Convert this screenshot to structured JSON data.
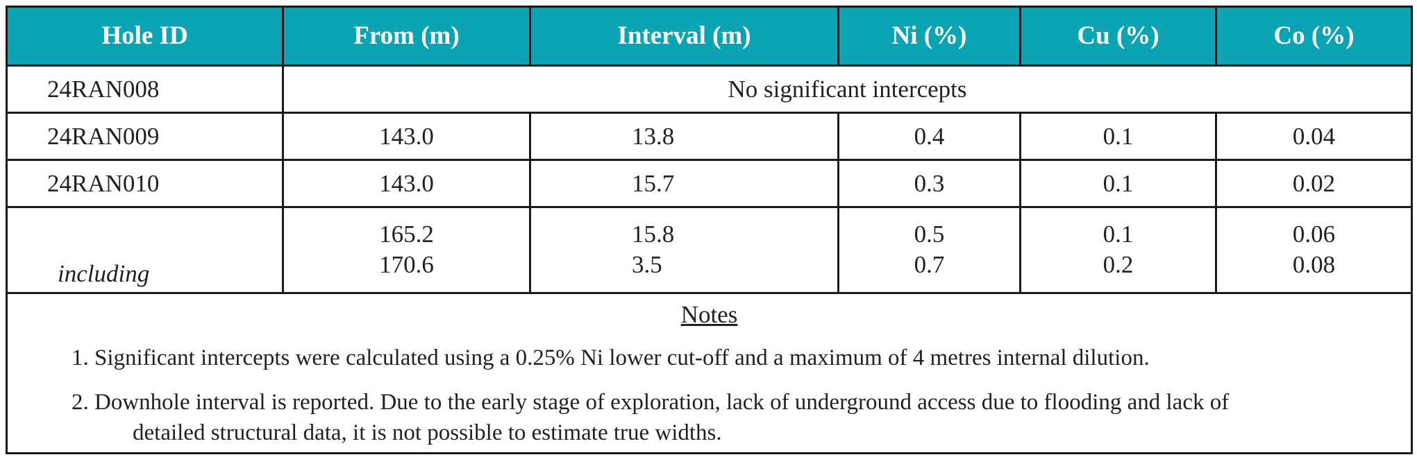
{
  "table": {
    "headers": [
      "Hole ID",
      "From (m)",
      "Interval (m)",
      "Ni (%)",
      "Cu (%)",
      "Co (%)"
    ],
    "rows": [
      {
        "hole": "24RAN008",
        "merged": "No significant intercepts"
      },
      {
        "hole": "24RAN009",
        "from": "143.0",
        "interval": "13.8",
        "ni": "0.4",
        "cu": "0.1",
        "co": "0.04"
      },
      {
        "hole": "24RAN010",
        "from": "143.0",
        "interval": "15.7",
        "ni": "0.3",
        "cu": "0.1",
        "co": "0.02"
      }
    ],
    "including": {
      "label": "including",
      "lines": [
        {
          "from": "165.2",
          "interval": "15.8",
          "ni": "0.5",
          "cu": "0.1",
          "co": "0.06"
        },
        {
          "from": "170.6",
          "interval": "3.5",
          "ni": "0.7",
          "cu": "0.2",
          "co": "0.08"
        }
      ]
    }
  },
  "notes": {
    "title": "Notes",
    "items": [
      {
        "text": "1. Significant intercepts were calculated using a 0.25% Ni lower cut-off and a maximum of 4 metres internal dilution."
      },
      {
        "text": "2. Downhole interval is reported. Due to the early stage of exploration, lack of underground access due to flooding and lack of",
        "cont": "detailed structural data, it is not possible to estimate true widths."
      }
    ]
  },
  "colors": {
    "header_bg": "#0aa4b5",
    "header_text": "#ffffff",
    "border": "#1a1a1a"
  }
}
